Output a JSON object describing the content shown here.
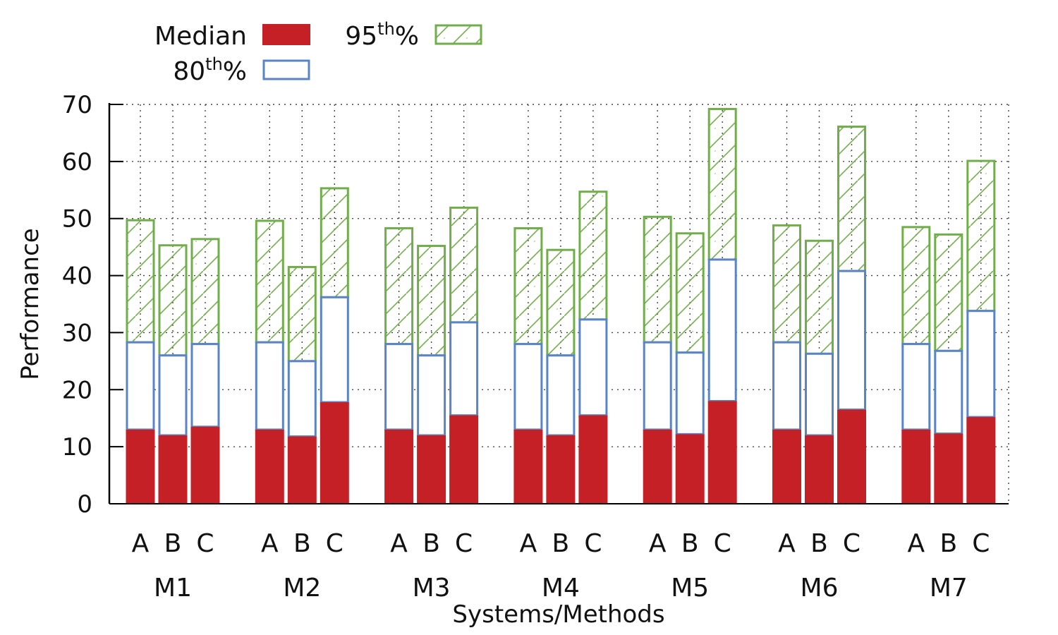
{
  "chart_data": {
    "type": "bar",
    "subtype": "grouped-stacked",
    "xlabel": "Systems/Methods",
    "ylabel": "Performance",
    "ylim": [
      0,
      70
    ],
    "yticks": [
      0,
      10,
      20,
      30,
      40,
      50,
      60,
      70
    ],
    "grid": true,
    "legend_position": "top-left",
    "groups": [
      "M1",
      "M2",
      "M3",
      "M4",
      "M5",
      "M6",
      "M7"
    ],
    "categories": [
      "A",
      "B",
      "C"
    ],
    "legend": [
      {
        "key": "median",
        "base": "Median",
        "sup": ""
      },
      {
        "key": "p80",
        "base": "80",
        "sup": "th",
        "suffix": "%"
      },
      {
        "key": "p95",
        "base": "95",
        "sup": "th",
        "suffix": "%"
      }
    ],
    "series": [
      {
        "name": "Median",
        "key": "median",
        "color": "#c42026",
        "values": [
          [
            13.0,
            12.0,
            13.5
          ],
          [
            13.0,
            11.8,
            17.8
          ],
          [
            13.0,
            12.0,
            15.5
          ],
          [
            13.0,
            12.0,
            15.5
          ],
          [
            13.0,
            12.2,
            18.0
          ],
          [
            13.0,
            12.0,
            16.5
          ],
          [
            13.0,
            12.3,
            15.2
          ]
        ]
      },
      {
        "name": "80th%",
        "key": "p80",
        "color": "#5b84c4",
        "values": [
          [
            28.3,
            26.0,
            28.0
          ],
          [
            28.3,
            25.0,
            36.2
          ],
          [
            28.0,
            26.0,
            31.8
          ],
          [
            28.0,
            26.0,
            32.3
          ],
          [
            28.3,
            26.5,
            42.8
          ],
          [
            28.3,
            26.3,
            40.8
          ],
          [
            28.0,
            26.8,
            33.8
          ]
        ]
      },
      {
        "name": "95th%",
        "key": "p95",
        "color": "#72ad4c",
        "values": [
          [
            49.7,
            45.3,
            46.4
          ],
          [
            49.6,
            41.5,
            55.3
          ],
          [
            48.3,
            45.2,
            51.9
          ],
          [
            48.3,
            44.5,
            54.7
          ],
          [
            50.3,
            47.4,
            69.2
          ],
          [
            48.8,
            46.1,
            66.1
          ],
          [
            48.5,
            47.2,
            60.1
          ]
        ]
      }
    ]
  }
}
